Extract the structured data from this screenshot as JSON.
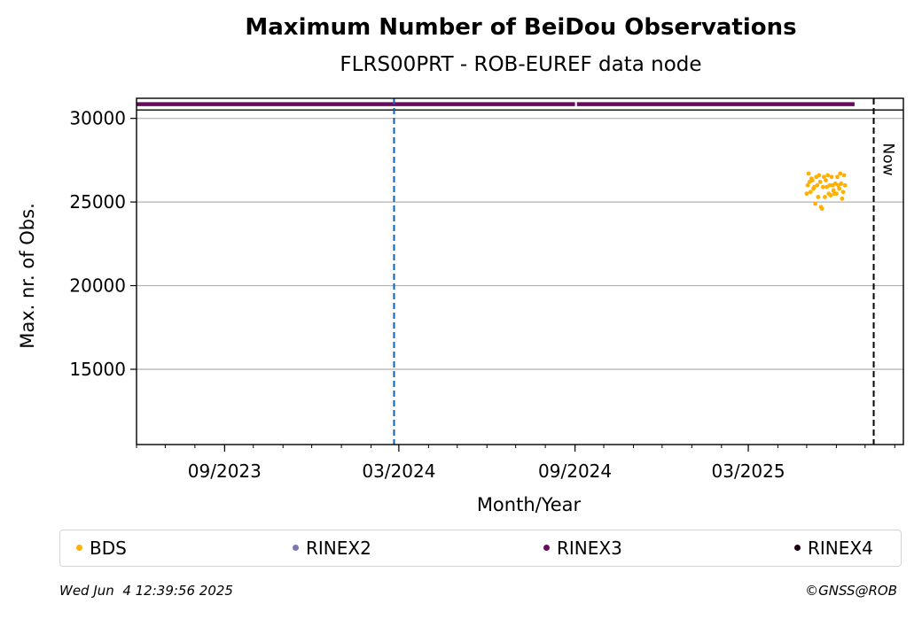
{
  "title": "Maximum Number of BeiDou Observations",
  "subtitle": "FLRS00PRT - ROB-EUREF data node",
  "footer": {
    "timestamp": "Wed Jun  4 12:39:56 2025",
    "copyright": "©GNSS@ROB"
  },
  "colors": {
    "BDS": "#ffb000",
    "RINEX2": "#7a77b8",
    "RINEX3": "#6a0a5e",
    "RINEX4": "#1a0016",
    "event_line": "#1060b0",
    "now_line": "#000000",
    "grid": "#b0b0b0"
  },
  "chart_data": {
    "type": "scatter",
    "xlabel": "Month/Year",
    "ylabel": "Max. nr. of Obs.",
    "x_tick_labels": [
      "09/2023",
      "03/2024",
      "09/2024",
      "03/2025"
    ],
    "x_tick_dates": [
      "2023-09-01",
      "2024-03-01",
      "2024-09-01",
      "2025-03-01"
    ],
    "xlim": [
      "2023-06-01",
      "2025-08-10"
    ],
    "ylim": [
      10500,
      31200
    ],
    "y_ticks": [
      15000,
      20000,
      25000,
      30000
    ],
    "y_tick_labels": [
      "15000",
      "20000",
      "25000",
      "30000"
    ],
    "grid": "horizontal",
    "legend_position": "bottom",
    "reference_line_y": 30500,
    "vertical_lines": [
      {
        "date": "2024-02-25",
        "style": "dashed",
        "label": ""
      },
      {
        "date": "2025-07-10",
        "style": "dashed",
        "label": "Now"
      }
    ],
    "legend": [
      "BDS",
      "RINEX2",
      "RINEX3",
      "RINEX4"
    ],
    "series": [
      {
        "name": "RINEX3",
        "segments": [
          {
            "start": "2023-06-01",
            "end": "2024-09-01",
            "y": 30850
          },
          {
            "start": "2024-09-03",
            "end": "2025-06-20",
            "y": 30850
          }
        ]
      },
      {
        "name": "BDS",
        "points": [
          [
            "2025-05-01",
            25500
          ],
          [
            "2025-05-02",
            26000
          ],
          [
            "2025-05-03",
            26700
          ],
          [
            "2025-05-04",
            26200
          ],
          [
            "2025-05-05",
            25600
          ],
          [
            "2025-05-06",
            26400
          ],
          [
            "2025-05-07",
            26300
          ],
          [
            "2025-05-08",
            25800
          ],
          [
            "2025-05-09",
            25900
          ],
          [
            "2025-05-10",
            24900
          ],
          [
            "2025-05-11",
            26500
          ],
          [
            "2025-05-12",
            26000
          ],
          [
            "2025-05-13",
            25300
          ],
          [
            "2025-05-14",
            26600
          ],
          [
            "2025-05-15",
            26200
          ],
          [
            "2025-05-16",
            24700
          ],
          [
            "2025-05-17",
            24600
          ],
          [
            "2025-05-18",
            25900
          ],
          [
            "2025-05-19",
            26500
          ],
          [
            "2025-05-20",
            25300
          ],
          [
            "2025-05-21",
            26300
          ],
          [
            "2025-05-22",
            25900
          ],
          [
            "2025-05-23",
            26600
          ],
          [
            "2025-05-24",
            25500
          ],
          [
            "2025-05-25",
            26000
          ],
          [
            "2025-05-26",
            25400
          ],
          [
            "2025-05-27",
            26500
          ],
          [
            "2025-05-28",
            26000
          ],
          [
            "2025-05-29",
            25700
          ],
          [
            "2025-05-30",
            25500
          ],
          [
            "2025-05-31",
            26100
          ],
          [
            "2025-06-01",
            25500
          ],
          [
            "2025-06-02",
            26500
          ],
          [
            "2025-06-03",
            26000
          ],
          [
            "2025-06-04",
            25800
          ],
          [
            "2025-06-05",
            26700
          ],
          [
            "2025-06-06",
            26100
          ],
          [
            "2025-06-07",
            25200
          ],
          [
            "2025-06-08",
            25600
          ],
          [
            "2025-06-09",
            26600
          ],
          [
            "2025-06-10",
            26000
          ]
        ]
      }
    ]
  }
}
